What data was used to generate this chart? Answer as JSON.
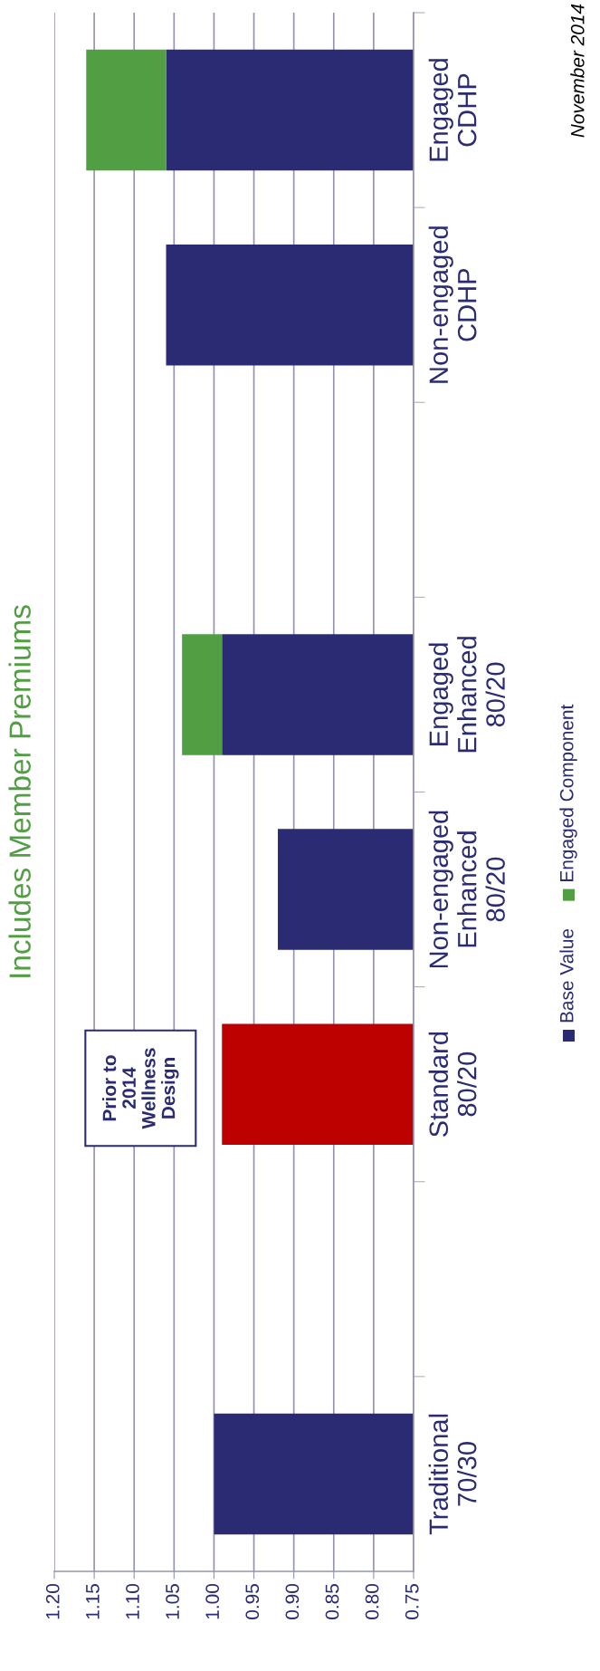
{
  "chart_data": {
    "type": "bar",
    "orientation": "horizontal",
    "title": "Includes Member Premiums",
    "categories": [
      "Engaged\nCDHP",
      "Non-engaged\nCDHP",
      null,
      "Engaged\nEnhanced\n80/20",
      "Non-engaged\nEnhanced\n80/20",
      "Standard\n80/20",
      null,
      "Traditional\n70/30"
    ],
    "series": [
      {
        "name": "Base Value",
        "color": "#2a2b72",
        "colors": [
          "#2a2b72",
          "#2a2b72",
          "#2a2b72",
          "#2a2b72",
          "#2a2b72",
          "#bd0000",
          "#2a2b72",
          "#2a2b72"
        ],
        "values": [
          1.06,
          1.06,
          null,
          0.99,
          0.92,
          0.99,
          null,
          1.0
        ]
      },
      {
        "name": "Engaged Component",
        "color": "#519e43",
        "base": [
          1.06,
          null,
          null,
          0.99,
          null,
          null,
          null,
          null
        ],
        "values": [
          0.1,
          null,
          null,
          0.05,
          null,
          null,
          null,
          null
        ]
      }
    ],
    "xlim": [
      1.2,
      0.75
    ],
    "xticks": [
      {
        "value": 1.2,
        "label": "1.20"
      },
      {
        "value": 1.15,
        "label": "1.15"
      },
      {
        "value": 1.1,
        "label": "1.10"
      },
      {
        "value": 1.05,
        "label": "1.05"
      },
      {
        "value": 1.0,
        "label": "1.00"
      },
      {
        "value": 0.95,
        "label": "0.95"
      },
      {
        "value": 0.9,
        "label": "0.90"
      },
      {
        "value": 0.85,
        "label": "0.85"
      },
      {
        "value": 0.8,
        "label": "0.80"
      },
      {
        "value": 0.75,
        "label": "0.75"
      }
    ],
    "grid": "x",
    "legend": "right",
    "annotations": [
      "Prior to\n2014\nWellness\nDesign",
      "November 2014"
    ]
  }
}
